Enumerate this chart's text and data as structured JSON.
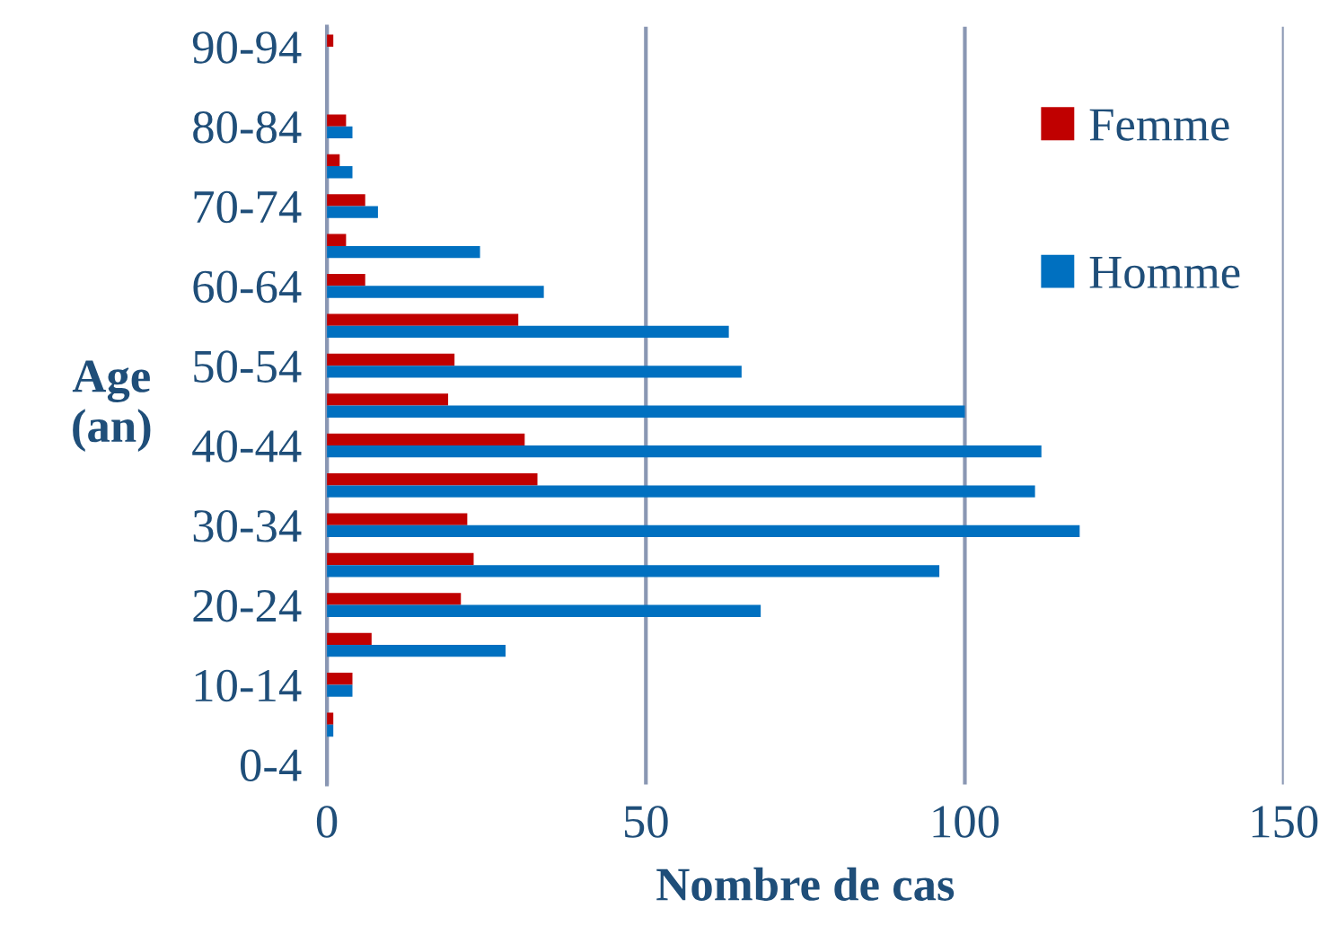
{
  "chart_data": {
    "type": "bar",
    "orientation": "horizontal",
    "xlabel": "Nombre de cas",
    "ylabel": "Age\n(an)",
    "categories": [
      "90-94",
      null,
      "80-84",
      null,
      "70-74",
      null,
      "60-64",
      null,
      "50-54",
      null,
      "40-44",
      null,
      "30-34",
      null,
      "20-24",
      null,
      "10-14",
      null,
      "0-4"
    ],
    "series": [
      {
        "name": "Femme",
        "color": "#c00000",
        "values": [
          1,
          0,
          3,
          2,
          6,
          3,
          6,
          30,
          20,
          19,
          31,
          33,
          22,
          23,
          21,
          7,
          4,
          1,
          0
        ]
      },
      {
        "name": "Homme",
        "color": "#0070c0",
        "values": [
          0,
          0,
          4,
          4,
          8,
          24,
          34,
          63,
          65,
          100,
          112,
          111,
          118,
          96,
          68,
          28,
          4,
          1,
          0
        ]
      }
    ],
    "xlim": [
      0,
      150
    ],
    "xticks": [
      0,
      50,
      100,
      150
    ],
    "grid": "x",
    "legend": "top right"
  }
}
